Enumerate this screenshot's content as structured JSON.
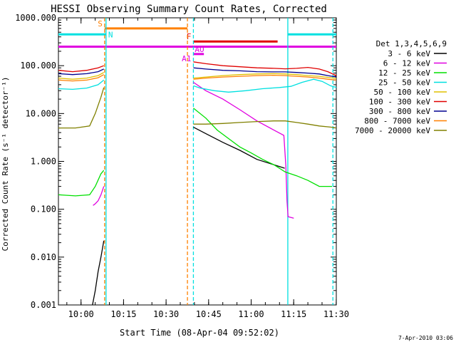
{
  "chart_data": {
    "type": "line",
    "title": "HESSI Observing Summary Count Rates, Corrected",
    "xlabel": "Start Time (08-Apr-04 09:52:02)",
    "ylabel": "Corrected Count Rate (s⁻¹ detector⁻¹)",
    "footer_date": "7-Apr-2010 03:06",
    "x_units": "minutes since 09:52:02",
    "xlim": [
      0,
      98
    ],
    "ylim": [
      0.001,
      1000
    ],
    "yscale": "log",
    "x_ticks": [
      {
        "label": "10:00",
        "t": 7.97
      },
      {
        "label": "10:15",
        "t": 22.97
      },
      {
        "label": "10:30",
        "t": 37.97
      },
      {
        "label": "10:45",
        "t": 52.97
      },
      {
        "label": "11:00",
        "t": 67.97
      },
      {
        "label": "11:15",
        "t": 82.97
      },
      {
        "label": "11:30",
        "t": 97.97
      }
    ],
    "y_ticks": [
      {
        "label": "1000.000",
        "v": 1000
      },
      {
        "label": "100.000",
        "v": 100
      },
      {
        "label": "10.000",
        "v": 10
      },
      {
        "label": "1.000",
        "v": 1
      },
      {
        "label": "0.100",
        "v": 0.1
      },
      {
        "label": "0.010",
        "v": 0.01
      },
      {
        "label": "0.001",
        "v": 0.001
      }
    ],
    "legend": {
      "header": "Det 1,3,4,5,6,9",
      "placement": "right"
    },
    "series": [
      {
        "name": "3 - 6 keV",
        "color": "#000000",
        "points": [
          [
            12,
            0.001
          ],
          [
            13,
            0.002
          ],
          [
            14,
            0.005
          ],
          [
            15,
            0.01
          ],
          [
            16,
            0.022
          ],
          [
            47.6,
            5.2
          ],
          [
            52,
            3.8
          ],
          [
            58,
            2.5
          ],
          [
            64,
            1.7
          ],
          [
            70,
            1.1
          ],
          [
            76,
            0.85
          ],
          [
            79.8,
            0.72
          ]
        ]
      },
      {
        "name": "6 - 12 keV",
        "color": "#e000e0",
        "points": [
          [
            12.2,
            0.12
          ],
          [
            13,
            0.13
          ],
          [
            14,
            0.15
          ],
          [
            15,
            0.2
          ],
          [
            16,
            0.3
          ],
          [
            47.6,
            45
          ],
          [
            52,
            30
          ],
          [
            58,
            20
          ],
          [
            64,
            12
          ],
          [
            70,
            7
          ],
          [
            76,
            4.5
          ],
          [
            79.5,
            3.5
          ],
          [
            80.2,
            0.8
          ],
          [
            80.6,
            0.15
          ],
          [
            81,
            0.07
          ],
          [
            83,
            0.065
          ]
        ]
      },
      {
        "name": "12 - 25 keV",
        "color": "#00e000",
        "points": [
          [
            0,
            0.2
          ],
          [
            6,
            0.19
          ],
          [
            11,
            0.2
          ],
          [
            13,
            0.3
          ],
          [
            15,
            0.55
          ],
          [
            16,
            0.65
          ],
          [
            47.6,
            13
          ],
          [
            52,
            8
          ],
          [
            56,
            4.5
          ],
          [
            60,
            3
          ],
          [
            64,
            2
          ],
          [
            68,
            1.5
          ],
          [
            72,
            1.1
          ],
          [
            76,
            0.85
          ],
          [
            80,
            0.6
          ],
          [
            84,
            0.5
          ],
          [
            88,
            0.4
          ],
          [
            92,
            0.3
          ],
          [
            96.5,
            0.3
          ]
        ]
      },
      {
        "name": "25 - 50 keV",
        "color": "#00e0e0",
        "points": [
          [
            0,
            33
          ],
          [
            5,
            32
          ],
          [
            10,
            34
          ],
          [
            14,
            40
          ],
          [
            16,
            50
          ],
          [
            47.6,
            38
          ],
          [
            50,
            34
          ],
          [
            55,
            30
          ],
          [
            60,
            28
          ],
          [
            66,
            30
          ],
          [
            72,
            33
          ],
          [
            78,
            35
          ],
          [
            82,
            37
          ],
          [
            86,
            45
          ],
          [
            90,
            52
          ],
          [
            93,
            47
          ],
          [
            96,
            38
          ],
          [
            98,
            35
          ]
        ]
      },
      {
        "name": "50 - 100 keV",
        "color": "#e0c000",
        "points": [
          [
            0,
            55
          ],
          [
            5,
            52
          ],
          [
            10,
            55
          ],
          [
            14,
            62
          ],
          [
            16,
            72
          ],
          [
            47.6,
            55
          ],
          [
            52,
            58
          ],
          [
            58,
            62
          ],
          [
            64,
            65
          ],
          [
            70,
            67
          ],
          [
            76,
            68
          ],
          [
            80,
            67
          ],
          [
            84,
            65
          ],
          [
            88,
            62
          ],
          [
            92,
            60
          ],
          [
            95,
            57
          ],
          [
            98,
            54
          ]
        ]
      },
      {
        "name": "100 - 300 keV",
        "color": "#e00000",
        "points": [
          [
            0,
            80
          ],
          [
            5,
            75
          ],
          [
            10,
            80
          ],
          [
            14,
            90
          ],
          [
            16,
            100
          ],
          [
            47.6,
            120
          ],
          [
            52,
            110
          ],
          [
            58,
            100
          ],
          [
            64,
            95
          ],
          [
            70,
            90
          ],
          [
            76,
            88
          ],
          [
            80,
            86
          ],
          [
            84,
            88
          ],
          [
            88,
            92
          ],
          [
            92,
            85
          ],
          [
            95,
            75
          ],
          [
            98,
            62
          ]
        ]
      },
      {
        "name": "300 - 800 keV",
        "color": "#000090",
        "points": [
          [
            0,
            68
          ],
          [
            5,
            65
          ],
          [
            10,
            68
          ],
          [
            14,
            75
          ],
          [
            16,
            85
          ],
          [
            47.6,
            90
          ],
          [
            52,
            85
          ],
          [
            58,
            80
          ],
          [
            64,
            78
          ],
          [
            70,
            75
          ],
          [
            76,
            74
          ],
          [
            80,
            74
          ],
          [
            84,
            72
          ],
          [
            88,
            70
          ],
          [
            92,
            67
          ],
          [
            95,
            62
          ],
          [
            98,
            58
          ]
        ]
      },
      {
        "name": "800 - 7000 keV",
        "color": "#ff8000",
        "points": [
          [
            0,
            50
          ],
          [
            5,
            48
          ],
          [
            10,
            50
          ],
          [
            14,
            56
          ],
          [
            16,
            65
          ],
          [
            47.6,
            52
          ],
          [
            52,
            55
          ],
          [
            58,
            58
          ],
          [
            64,
            60
          ],
          [
            70,
            62
          ],
          [
            76,
            63
          ],
          [
            80,
            62
          ],
          [
            84,
            60
          ],
          [
            88,
            58
          ],
          [
            92,
            55
          ],
          [
            95,
            52
          ],
          [
            98,
            50
          ]
        ]
      },
      {
        "name": "7000 - 20000 keV",
        "color": "#808000",
        "points": [
          [
            0,
            5
          ],
          [
            6,
            5
          ],
          [
            11,
            5.5
          ],
          [
            13,
            10
          ],
          [
            15,
            22
          ],
          [
            16,
            35
          ],
          [
            47.6,
            6
          ],
          [
            52,
            6
          ],
          [
            58,
            6.2
          ],
          [
            64,
            6.5
          ],
          [
            70,
            6.8
          ],
          [
            76,
            7
          ],
          [
            80,
            7
          ],
          [
            84,
            6.5
          ],
          [
            88,
            6
          ],
          [
            92,
            5.5
          ],
          [
            96,
            5.2
          ],
          [
            98,
            5
          ]
        ]
      }
    ],
    "vlines": [
      {
        "t": 16.3,
        "color": "#ff8000",
        "dashed": true
      },
      {
        "t": 16.8,
        "color": "#00e0e0",
        "dashed": false
      },
      {
        "t": 45.5,
        "color": "#ff8000",
        "dashed": true
      },
      {
        "t": 47.6,
        "color": "#00e0e0",
        "dashed": true
      },
      {
        "t": 80.9,
        "color": "#00e0e0",
        "dashed": false
      },
      {
        "t": 96.8,
        "color": "#00e0e0",
        "dashed": true
      }
    ],
    "flag_bars": [
      {
        "label": "S",
        "color": "#ff8000",
        "t0": 16.3,
        "t1": 45.5,
        "v": 600
      },
      {
        "label": "N",
        "color": "#00e0e0",
        "t0": 0,
        "t1": 16.8,
        "v": 450
      },
      {
        "label": "",
        "color": "#00e0e0",
        "t0": 80.9,
        "t1": 98,
        "v": 450
      },
      {
        "label": "F",
        "color": "#e00000",
        "t0": 47.6,
        "t1": 77.3,
        "v": 320
      },
      {
        "label": "",
        "color": "#e000e0",
        "t0": 0,
        "t1": 98,
        "v": 250
      },
      {
        "label": "AO",
        "color": "#e000e0",
        "t0": 47.6,
        "t1": 51.3,
        "v": 175
      },
      {
        "label": "A1",
        "color": "#e000e0",
        "t0": 47.6,
        "t1": 47.6,
        "v": 175
      }
    ]
  }
}
